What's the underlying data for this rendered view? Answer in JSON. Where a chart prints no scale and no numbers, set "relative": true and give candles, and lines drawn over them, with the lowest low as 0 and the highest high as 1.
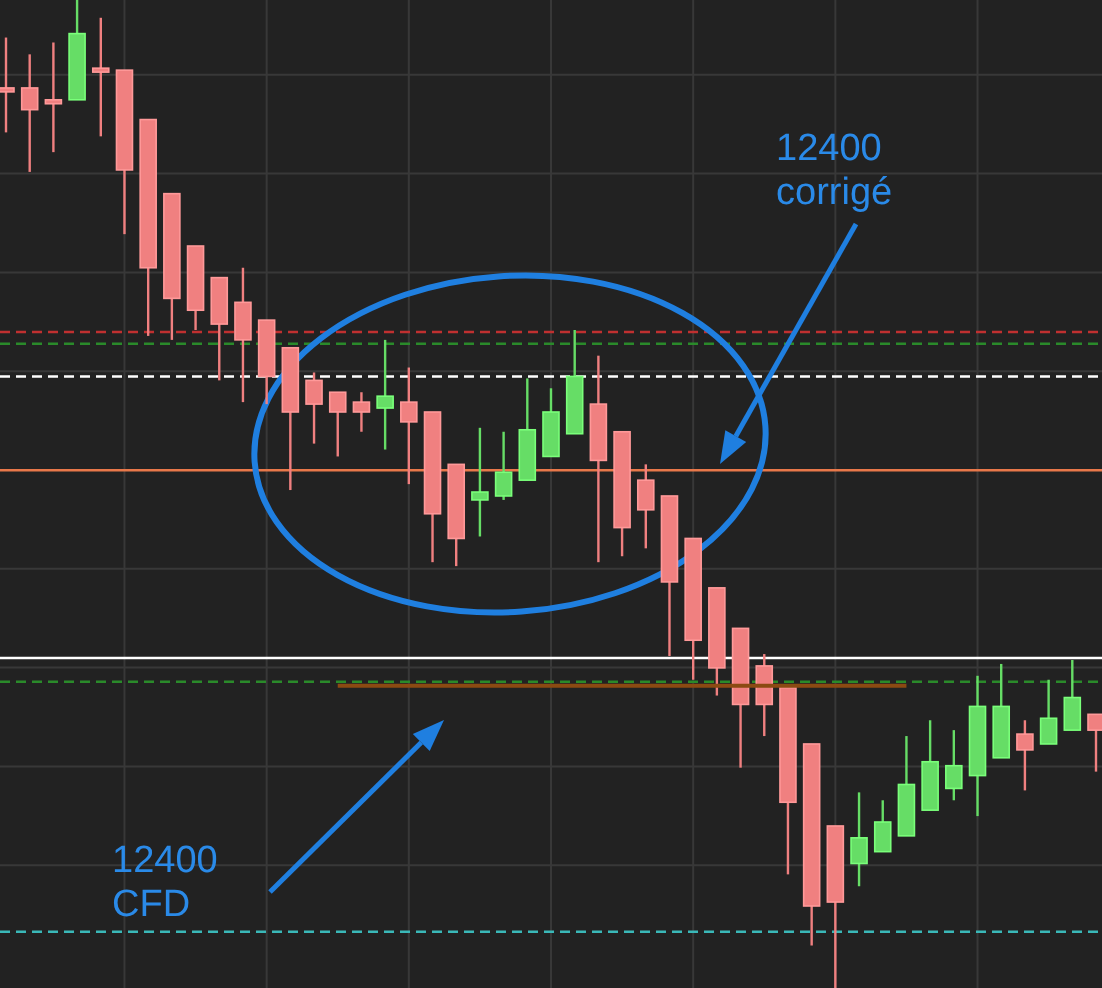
{
  "chart_data": {
    "type": "candlestick",
    "relative": true,
    "grid": true,
    "categories": [
      null,
      null,
      null,
      null,
      null,
      null,
      null,
      null,
      null,
      null,
      null,
      null,
      null,
      null,
      null,
      null,
      null,
      null,
      null,
      null,
      null,
      null,
      null,
      null,
      null,
      null,
      null,
      null,
      null,
      null,
      null,
      null,
      null,
      null,
      null,
      null,
      null,
      null,
      null,
      null,
      null,
      null,
      null,
      null,
      null,
      null,
      null
    ],
    "ohlc": [
      [
        0.911,
        0.962,
        0.866,
        0.907
      ],
      [
        0.911,
        0.945,
        0.826,
        0.889
      ],
      [
        0.899,
        0.957,
        0.846,
        0.895
      ],
      [
        0.899,
        1,
        0.899,
        0.966
      ],
      [
        0.931,
        0.982,
        0.862,
        0.927
      ],
      [
        0.929,
        0.929,
        0.763,
        0.828
      ],
      [
        0.879,
        0.879,
        0.66,
        0.729
      ],
      [
        0.804,
        0.804,
        0.656,
        0.698
      ],
      [
        0.751,
        0.751,
        0.666,
        0.686
      ],
      [
        0.719,
        0.719,
        0.615,
        0.672
      ],
      [
        0.694,
        0.729,
        0.593,
        0.656
      ],
      [
        0.676,
        0.676,
        0.591,
        0.619
      ],
      [
        0.648,
        0.648,
        0.504,
        0.583
      ],
      [
        0.615,
        0.623,
        0.551,
        0.591
      ],
      [
        0.603,
        0.603,
        0.538,
        0.583
      ],
      [
        0.593,
        0.603,
        0.563,
        0.583
      ],
      [
        0.587,
        0.656,
        0.545,
        0.599
      ],
      [
        0.593,
        0.628,
        0.51,
        0.573
      ],
      [
        0.583,
        0.583,
        0.431,
        0.48
      ],
      [
        0.53,
        0.53,
        0.427,
        0.455
      ],
      [
        0.494,
        0.567,
        0.457,
        0.502
      ],
      [
        0.498,
        0.563,
        0.494,
        0.522
      ],
      [
        0.514,
        0.617,
        0.514,
        0.565
      ],
      [
        0.538,
        0.607,
        0.538,
        0.583
      ],
      [
        0.561,
        0.666,
        0.561,
        0.619
      ],
      [
        0.591,
        0.64,
        0.431,
        0.534
      ],
      [
        0.563,
        0.563,
        0.437,
        0.466
      ],
      [
        0.514,
        0.53,
        0.445,
        0.484
      ],
      [
        0.498,
        0.498,
        0.336,
        0.411
      ],
      [
        0.455,
        0.455,
        0.312,
        0.352
      ],
      [
        0.405,
        0.405,
        0.296,
        0.324
      ],
      [
        0.364,
        0.364,
        0.223,
        0.287
      ],
      [
        0.326,
        0.338,
        0.255,
        0.287
      ],
      [
        0.304,
        0.304,
        0.115,
        0.188
      ],
      [
        0.247,
        0.247,
        0.043,
        0.083
      ],
      [
        0.164,
        0.164,
        0,
        0.087
      ],
      [
        0.126,
        0.198,
        0.103,
        0.152
      ],
      [
        0.138,
        0.19,
        0.138,
        0.168
      ],
      [
        0.154,
        0.255,
        0.154,
        0.206
      ],
      [
        0.18,
        0.271,
        0.18,
        0.229
      ],
      [
        0.202,
        0.261,
        0.19,
        0.225
      ],
      [
        0.215,
        0.316,
        0.174,
        0.285
      ],
      [
        0.233,
        0.328,
        0.233,
        0.285
      ],
      [
        0.257,
        0.271,
        0.2,
        0.241
      ],
      [
        0.247,
        0.312,
        0.247,
        0.273
      ],
      [
        0.261,
        0.332,
        0.261,
        0.294
      ],
      [
        0.277,
        0.277,
        0.219,
        0.261
      ]
    ],
    "colors": [
      "#f08080",
      "#f08080",
      "#f08080",
      "#66dd66",
      "#f08080",
      "#f08080",
      "#f08080",
      "#f08080",
      "#f08080",
      "#f08080",
      "#f08080",
      "#f08080",
      "#f08080",
      "#f08080",
      "#f08080",
      "#f08080",
      "#66dd66",
      "#f08080",
      "#f08080",
      "#f08080",
      "#66dd66",
      "#66dd66",
      "#66dd66",
      "#66dd66",
      "#66dd66",
      "#f08080",
      "#f08080",
      "#f08080",
      "#f08080",
      "#f08080",
      "#f08080",
      "#f08080",
      "#f08080",
      "#f08080",
      "#f08080",
      "#f08080",
      "#66dd66",
      "#66dd66",
      "#66dd66",
      "#66dd66",
      "#66dd66",
      "#66dd66",
      "#66dd66",
      "#f08080",
      "#66dd66",
      "#66dd66",
      "#f08080"
    ],
    "series": [
      {
        "type": "line",
        "color": "#8b4a12",
        "values": [
          null,
          null,
          null,
          null,
          null,
          null,
          null,
          null,
          null,
          null,
          null,
          null,
          null,
          null,
          0.306,
          0.306,
          0.306,
          0.306,
          0.306,
          0.306,
          0.306,
          0.306,
          0.306,
          0.306,
          0.306,
          0.306,
          0.306,
          0.306,
          0.306,
          0.306,
          0.306,
          0.306,
          0.306,
          0.306,
          0.306,
          0.306,
          0.306,
          0.306,
          0.306,
          null,
          null,
          null,
          null,
          null,
          null,
          null,
          null
        ]
      }
    ],
    "ref_lines": [
      {
        "axis": "y",
        "value": 0.664,
        "color": "#c03030",
        "line_style": "dashed"
      },
      {
        "axis": "y",
        "value": 0.652,
        "color": "#2a8a2a",
        "line_style": "dashed"
      },
      {
        "axis": "y",
        "value": 0.619,
        "color": "#ffffff",
        "line_style": "dashed"
      },
      {
        "axis": "y",
        "value": 0.524,
        "color": "#e8784a",
        "line_style": "solid"
      },
      {
        "axis": "y",
        "value": 0.334,
        "color": "#ffffff",
        "line_style": "solid"
      },
      {
        "axis": "y",
        "value": 0.31,
        "color": "#2a8a2a",
        "line_style": "dashed"
      },
      {
        "axis": "y",
        "value": 0.057,
        "color": "#3ab8b8",
        "line_style": "dashed"
      }
    ],
    "annotations": [
      "12400\ncorrigé",
      "12400\nCFD"
    ]
  }
}
